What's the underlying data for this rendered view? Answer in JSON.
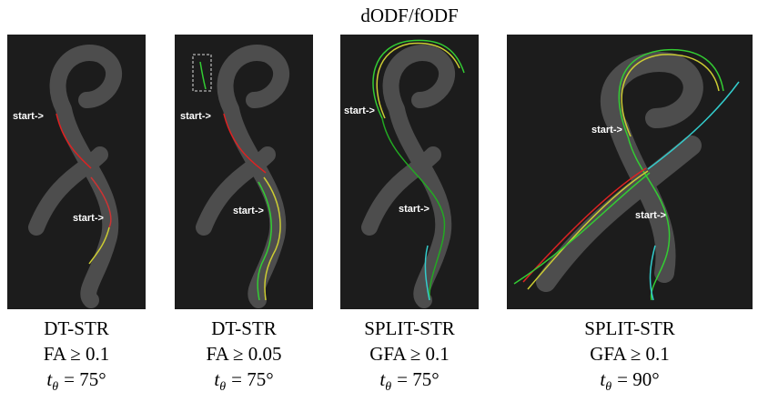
{
  "figure": {
    "title": "dODF/fODF",
    "panels": [
      {
        "labels": [
          "start->",
          "start->"
        ],
        "caption": [
          "DT-STR",
          "FA ≥ 0.1",
          {
            "symbol": "t",
            "subscript": "θ",
            "relation": "= 75°"
          }
        ]
      },
      {
        "labels": [
          "start->",
          "start->"
        ],
        "caption": [
          "DT-STR",
          "FA ≥ 0.05",
          {
            "symbol": "t",
            "subscript": "θ",
            "relation": "= 75°"
          }
        ]
      },
      {
        "labels": [
          "start->",
          "start->"
        ],
        "caption": [
          "SPLIT-STR",
          "GFA ≥ 0.1",
          {
            "symbol": "t",
            "subscript": "θ",
            "relation": "= 75°"
          }
        ]
      },
      {
        "labels": [
          "start->",
          "start->"
        ],
        "caption": [
          "SPLIT-STR",
          "GFA ≥ 0.1",
          {
            "symbol": "t",
            "subscript": "θ",
            "relation": "= 90°"
          }
        ]
      }
    ]
  }
}
